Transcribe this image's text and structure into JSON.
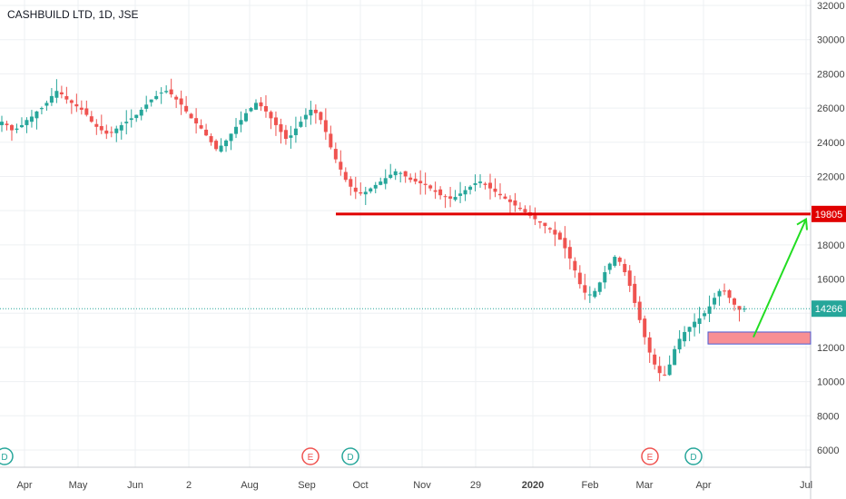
{
  "chart_data": {
    "type": "candlestick",
    "title": "CASHBUILD LTD, 1D, JSE",
    "ylim": [
      5000,
      32000
    ],
    "y_ticks": [
      6000,
      8000,
      10000,
      12000,
      14000,
      16000,
      18000,
      20000,
      22000,
      24000,
      26000,
      28000,
      30000,
      32000
    ],
    "x_ticks": [
      "Apr",
      "May",
      "Jun",
      "2",
      "Aug",
      "Sep",
      "Oct",
      "Nov",
      "29",
      "2020",
      "Feb",
      "Mar",
      "Apr",
      "Jul"
    ],
    "last_price": 14266,
    "resistance_level": 19805,
    "support_zone": [
      12200,
      12900
    ],
    "projection": {
      "from": 12600,
      "to": 19500
    },
    "closes": [
      25200,
      25000,
      24700,
      24800,
      25000,
      25300,
      25500,
      25800,
      26000,
      26300,
      26700,
      27000,
      26800,
      26500,
      26300,
      26100,
      25900,
      25600,
      25200,
      24900,
      24700,
      24500,
      24600,
      24800,
      25000,
      25200,
      25400,
      25600,
      25900,
      26200,
      26500,
      26700,
      26900,
      27000,
      26800,
      26500,
      26200,
      25800,
      25400,
      25100,
      24800,
      24400,
      24000,
      23600,
      23800,
      24100,
      24500,
      24900,
      25300,
      25700,
      26000,
      26300,
      26100,
      25800,
      25400,
      25000,
      24600,
      24200,
      24400,
      24800,
      25200,
      25600,
      25900,
      25700,
      25300,
      24600,
      23700,
      23000,
      22400,
      21800,
      21400,
      21100,
      21000,
      21100,
      21300,
      21500,
      21700,
      21900,
      22100,
      22300,
      22200,
      22000,
      21800,
      21700,
      21600,
      21500,
      21300,
      21100,
      20900,
      20800,
      20700,
      20800,
      21000,
      21200,
      21400,
      21600,
      21700,
      21500,
      21300,
      21100,
      20900,
      20700,
      20500,
      20300,
      20100,
      19900,
      19700,
      19500,
      19300,
      19100,
      18900,
      18600,
      18300,
      17800,
      17200,
      16500,
      15700,
      15200,
      15100,
      15300,
      15800,
      16400,
      16900,
      17300,
      17000,
      16400,
      15600,
      14600,
      13600,
      12600,
      11700,
      11000,
      10500,
      10400,
      11000,
      11900,
      12500,
      12900,
      13200,
      13500,
      13700,
      14000,
      14400,
      14900,
      15300,
      15300,
      14900,
      14500,
      14200,
      14266
    ],
    "events": [
      {
        "label": "D",
        "color": "#26a69a",
        "position": "Apr"
      },
      {
        "label": "E",
        "color": "#ef5350",
        "position": "Sep"
      },
      {
        "label": "D",
        "color": "#26a69a",
        "position": "Oct"
      },
      {
        "label": "E",
        "color": "#ef5350",
        "position": "Mar"
      },
      {
        "label": "D",
        "color": "#26a69a",
        "position": "Apr"
      }
    ],
    "colors": {
      "up": "#26a69a",
      "down": "#ef5350",
      "resistance": "#e00000",
      "projection": "#22dd22",
      "zone": "#f88f94"
    }
  }
}
